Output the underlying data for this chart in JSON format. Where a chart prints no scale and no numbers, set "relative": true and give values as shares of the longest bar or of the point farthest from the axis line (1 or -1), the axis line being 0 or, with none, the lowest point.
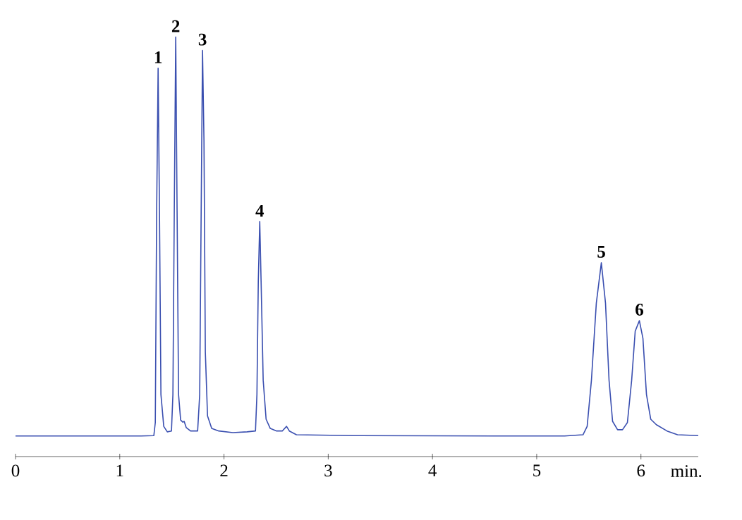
{
  "chart_data": {
    "type": "line",
    "relative": true,
    "xlabel": "min.",
    "xlim": [
      0,
      6.55
    ],
    "xticks": [
      0,
      1,
      2,
      3,
      4,
      5,
      6
    ],
    "tick_labels": "x",
    "color": "#3a4fb0",
    "x": [
      0,
      1.205,
      1.327,
      1.341,
      1.354,
      1.368,
      1.381,
      1.395,
      1.422,
      1.456,
      1.496,
      1.51,
      1.523,
      1.537,
      1.55,
      1.564,
      1.584,
      1.605,
      1.618,
      1.638,
      1.679,
      1.747,
      1.767,
      1.781,
      1.794,
      1.808,
      1.821,
      1.842,
      1.882,
      1.95,
      2.085,
      2.221,
      2.302,
      2.316,
      2.329,
      2.343,
      2.356,
      2.376,
      2.404,
      2.444,
      2.505,
      2.559,
      2.6,
      2.627,
      2.695,
      3.236,
      4.59,
      5.268,
      5.444,
      5.484,
      5.525,
      5.572,
      5.62,
      5.66,
      5.694,
      5.728,
      5.776,
      5.823,
      5.87,
      5.911,
      5.945,
      5.985,
      6.019,
      6.053,
      6.094,
      6.148,
      6.25,
      6.351,
      6.55
    ],
    "values": [
      0.049,
      0.049,
      0.05,
      0.081,
      0.585,
      0.926,
      0.585,
      0.148,
      0.072,
      0.059,
      0.061,
      0.148,
      0.585,
      1.0,
      0.585,
      0.148,
      0.087,
      0.082,
      0.084,
      0.069,
      0.061,
      0.061,
      0.148,
      0.585,
      0.968,
      0.753,
      0.249,
      0.097,
      0.067,
      0.061,
      0.057,
      0.059,
      0.061,
      0.148,
      0.417,
      0.56,
      0.417,
      0.182,
      0.089,
      0.067,
      0.061,
      0.061,
      0.072,
      0.061,
      0.052,
      0.05,
      0.049,
      0.049,
      0.052,
      0.072,
      0.182,
      0.366,
      0.462,
      0.366,
      0.182,
      0.084,
      0.064,
      0.064,
      0.081,
      0.182,
      0.299,
      0.324,
      0.282,
      0.148,
      0.089,
      0.076,
      0.061,
      0.052,
      0.05
    ],
    "annotations": [
      {
        "text": "1",
        "x": 1.368,
        "y": 0.926
      },
      {
        "text": "2",
        "x": 1.537,
        "y": 1.0
      },
      {
        "text": "3",
        "x": 1.794,
        "y": 0.968
      },
      {
        "text": "4",
        "x": 2.343,
        "y": 0.56
      },
      {
        "text": "5",
        "x": 5.62,
        "y": 0.462
      },
      {
        "text": "6",
        "x": 5.985,
        "y": 0.324
      }
    ]
  }
}
